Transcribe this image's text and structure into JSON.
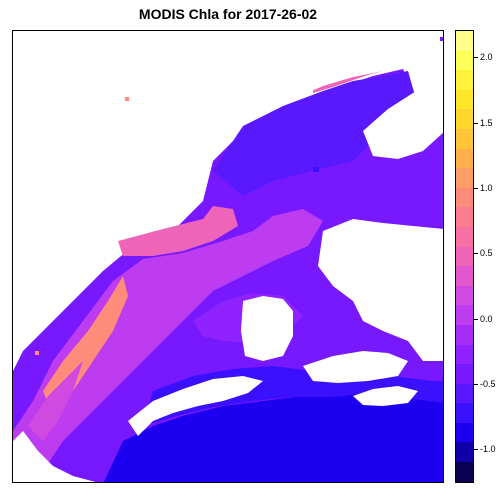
{
  "title": "MODIS Chla for 2017-26-02",
  "legend": {
    "min": -1.25,
    "max": 2.2,
    "ticks": [
      {
        "value": 2.0,
        "label": "2.0"
      },
      {
        "value": 1.5,
        "label": "1.5"
      },
      {
        "value": 1.0,
        "label": "1.0"
      },
      {
        "value": 0.5,
        "label": "0.5"
      },
      {
        "value": 0.0,
        "label": "0.0"
      },
      {
        "value": -0.5,
        "label": "-0.5"
      },
      {
        "value": -1.0,
        "label": "-1.0"
      }
    ],
    "colors": [
      "#0a0050",
      "#0f00a8",
      "#1e00f0",
      "#3a10ff",
      "#5a18ff",
      "#7818ff",
      "#9022ff",
      "#a82cf8",
      "#bd3cef",
      "#d04ae2",
      "#e257cd",
      "#ee64b8",
      "#f870a3",
      "#fc7e8e",
      "#ff8c7a",
      "#ff9d64",
      "#ffb04c",
      "#ffc438",
      "#ffd62c",
      "#ffe628",
      "#fff23a",
      "#ffff5a",
      "#ffff8a"
    ]
  },
  "map_colors": {
    "no_data": "#ffffff",
    "deep_blue": "#1e00f0",
    "blue": "#3a10ff",
    "violet_blue": "#5a18ff",
    "violet": "#7818ff",
    "purple": "#9022ff",
    "magenta_purple": "#bd3cef",
    "magenta": "#d04ae2",
    "pink": "#ee64b8",
    "salmon": "#ff8c7a"
  }
}
